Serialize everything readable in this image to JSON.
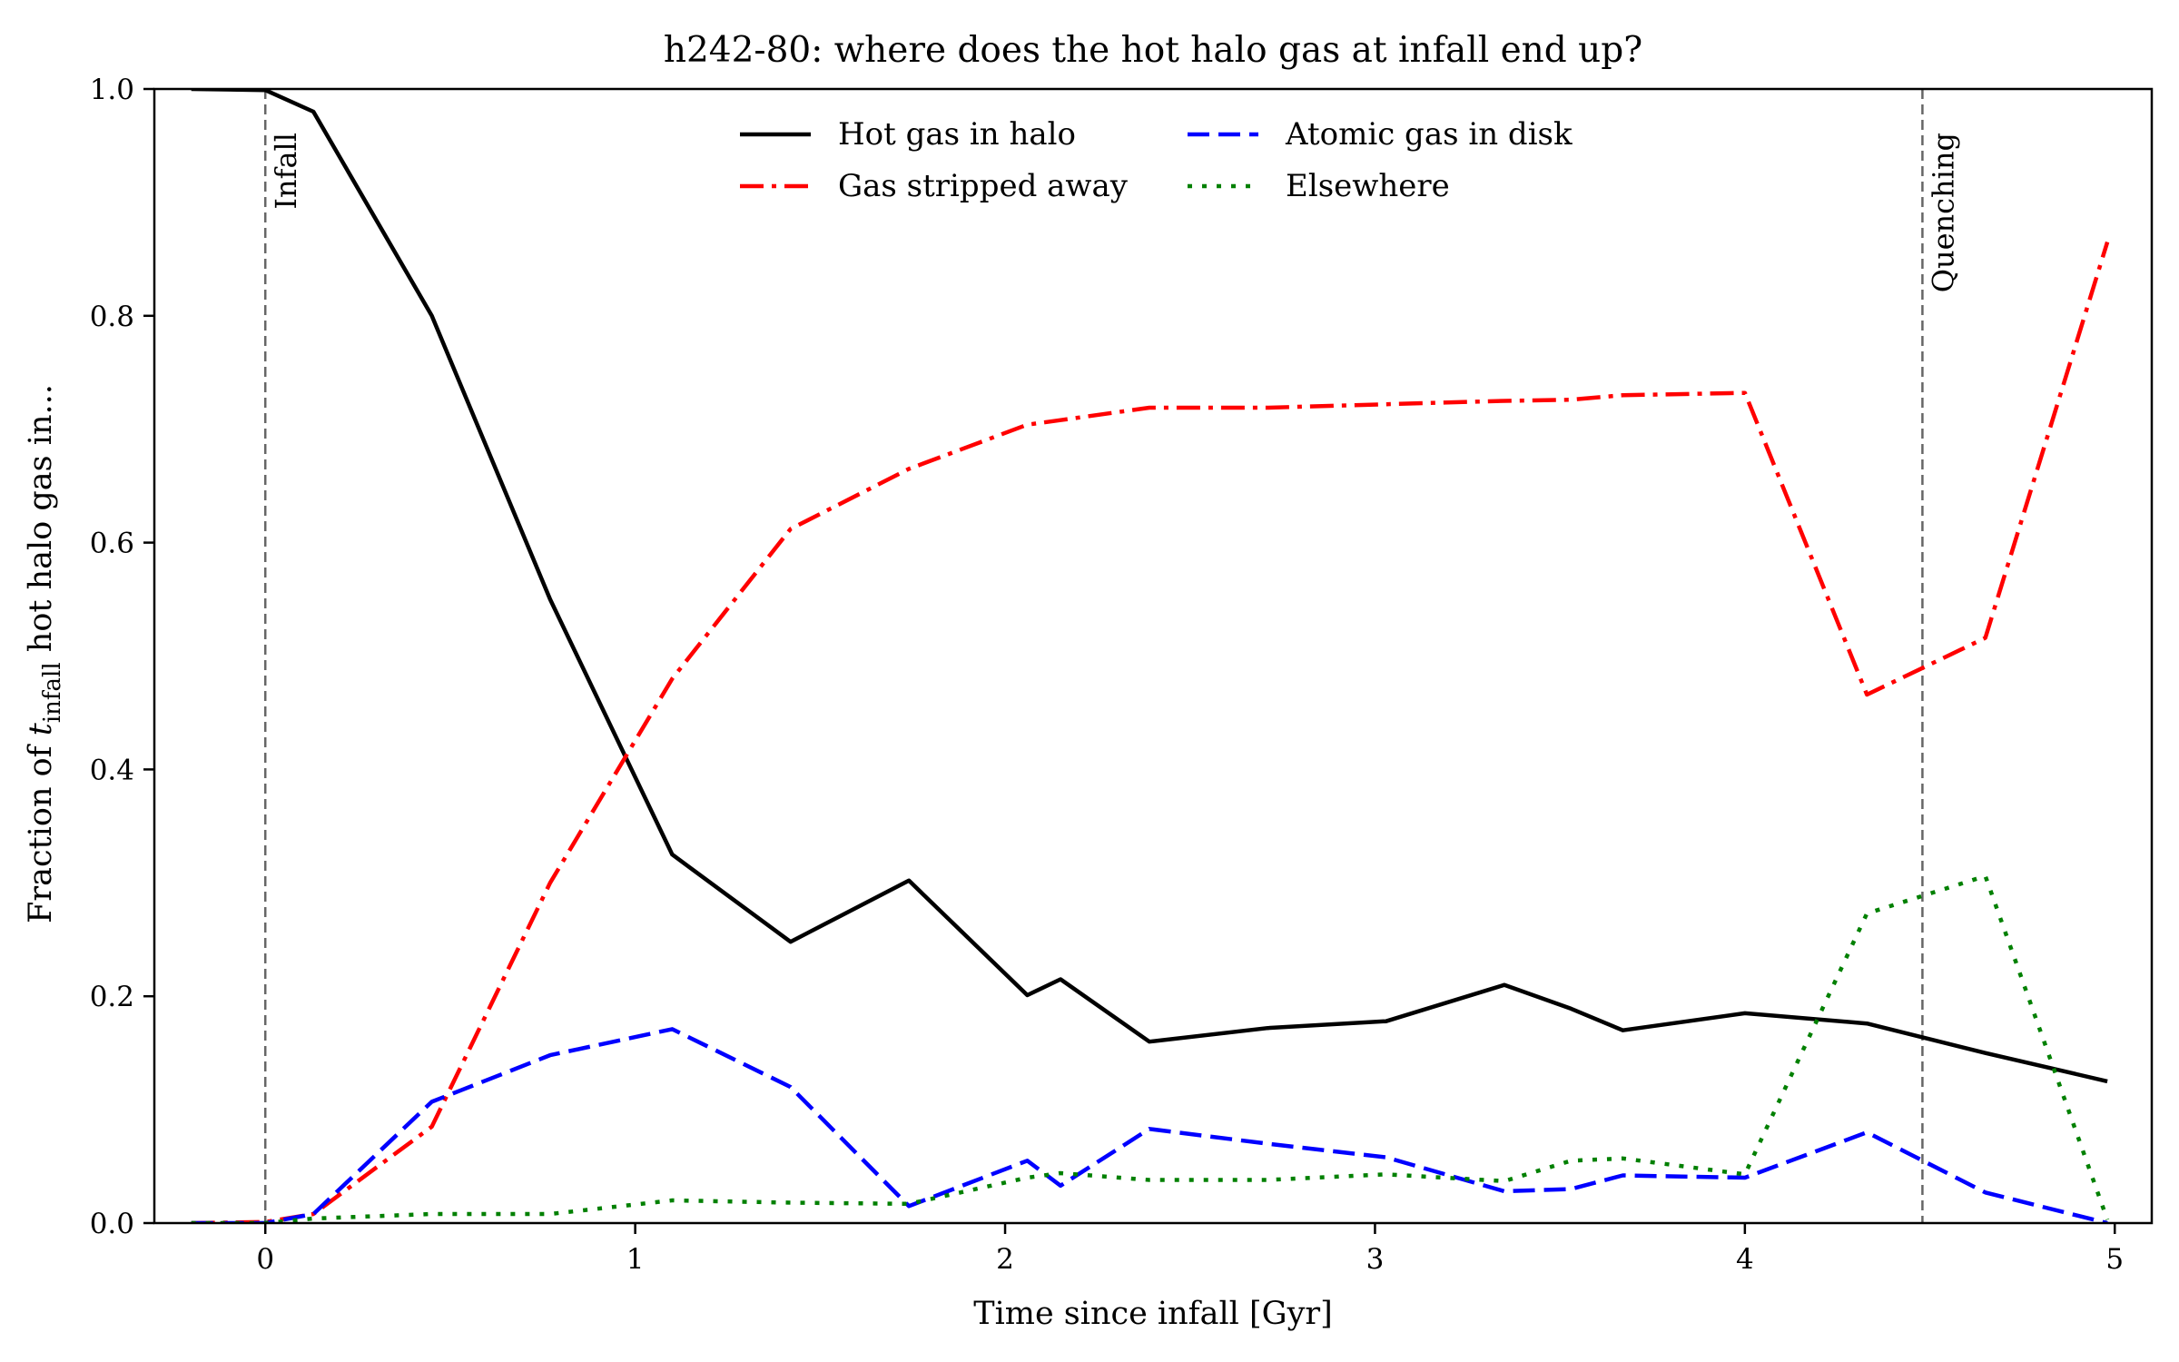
{
  "chart_data": {
    "type": "line",
    "title": "h242-80: where does the hot halo gas at infall end up?",
    "xlabel": "Time since infall [Gyr]",
    "ylabel": {
      "prefix": "Fraction of ",
      "var": "t",
      "sub": "infall",
      "suffix": " hot halo gas in..."
    },
    "xlim": [
      -0.3,
      5.1
    ],
    "ylim": [
      0.0,
      1.0
    ],
    "xticks": [
      "0",
      "1",
      "2",
      "3",
      "4",
      "5"
    ],
    "yticks": [
      "0.0",
      "0.2",
      "0.4",
      "0.6",
      "0.8",
      "1.0"
    ],
    "grid": false,
    "legend_position": "top-center",
    "vlines": [
      {
        "x": 0.0,
        "label": "Infall",
        "color": "#666666"
      },
      {
        "x": 4.48,
        "label": "Quenching",
        "color": "#666666"
      }
    ],
    "series": [
      {
        "name": "Hot gas in halo",
        "color": "#000000",
        "dash": "solid",
        "x": [
          -0.2,
          0.0,
          0.13,
          0.45,
          0.77,
          1.1,
          1.42,
          1.74,
          2.06,
          2.15,
          2.39,
          2.71,
          3.03,
          3.35,
          3.53,
          3.67,
          4.0,
          4.33,
          4.65,
          4.98
        ],
        "y": [
          1.0,
          0.999,
          0.98,
          0.8,
          0.55,
          0.325,
          0.248,
          0.302,
          0.201,
          0.215,
          0.16,
          0.172,
          0.178,
          0.21,
          0.189,
          0.17,
          0.185,
          0.176,
          0.15,
          0.125
        ]
      },
      {
        "name": "Gas stripped away",
        "color": "#ff0000",
        "dash": "dashdot",
        "x": [
          -0.2,
          0.0,
          0.13,
          0.45,
          0.77,
          1.1,
          1.42,
          1.74,
          2.06,
          2.15,
          2.39,
          2.71,
          3.03,
          3.35,
          3.53,
          3.67,
          4.0,
          4.33,
          4.65,
          4.98
        ],
        "y": [
          0.0,
          0.001,
          0.008,
          0.085,
          0.3,
          0.48,
          0.612,
          0.665,
          0.704,
          0.708,
          0.719,
          0.719,
          0.722,
          0.725,
          0.726,
          0.73,
          0.732,
          0.466,
          0.516,
          0.865
        ]
      },
      {
        "name": "Atomic gas in disk",
        "color": "#0000ff",
        "dash": "dashed",
        "x": [
          -0.2,
          0.0,
          0.13,
          0.45,
          0.77,
          1.1,
          1.42,
          1.74,
          2.06,
          2.15,
          2.39,
          2.71,
          3.03,
          3.35,
          3.53,
          3.67,
          4.0,
          4.33,
          4.65,
          4.98
        ],
        "y": [
          0.0,
          0.0,
          0.008,
          0.107,
          0.148,
          0.171,
          0.12,
          0.015,
          0.055,
          0.033,
          0.083,
          0.07,
          0.058,
          0.028,
          0.03,
          0.042,
          0.04,
          0.08,
          0.027,
          0.0
        ]
      },
      {
        "name": "Elsewhere",
        "color": "#008000",
        "dash": "dotted",
        "x": [
          -0.2,
          0.0,
          0.13,
          0.45,
          0.77,
          1.1,
          1.42,
          1.74,
          2.06,
          2.15,
          2.39,
          2.71,
          3.03,
          3.35,
          3.53,
          3.67,
          4.0,
          4.33,
          4.65,
          4.98
        ],
        "y": [
          0.0,
          0.0,
          0.004,
          0.008,
          0.008,
          0.02,
          0.018,
          0.017,
          0.04,
          0.044,
          0.038,
          0.038,
          0.043,
          0.037,
          0.055,
          0.057,
          0.043,
          0.273,
          0.306,
          0.003
        ]
      }
    ]
  }
}
